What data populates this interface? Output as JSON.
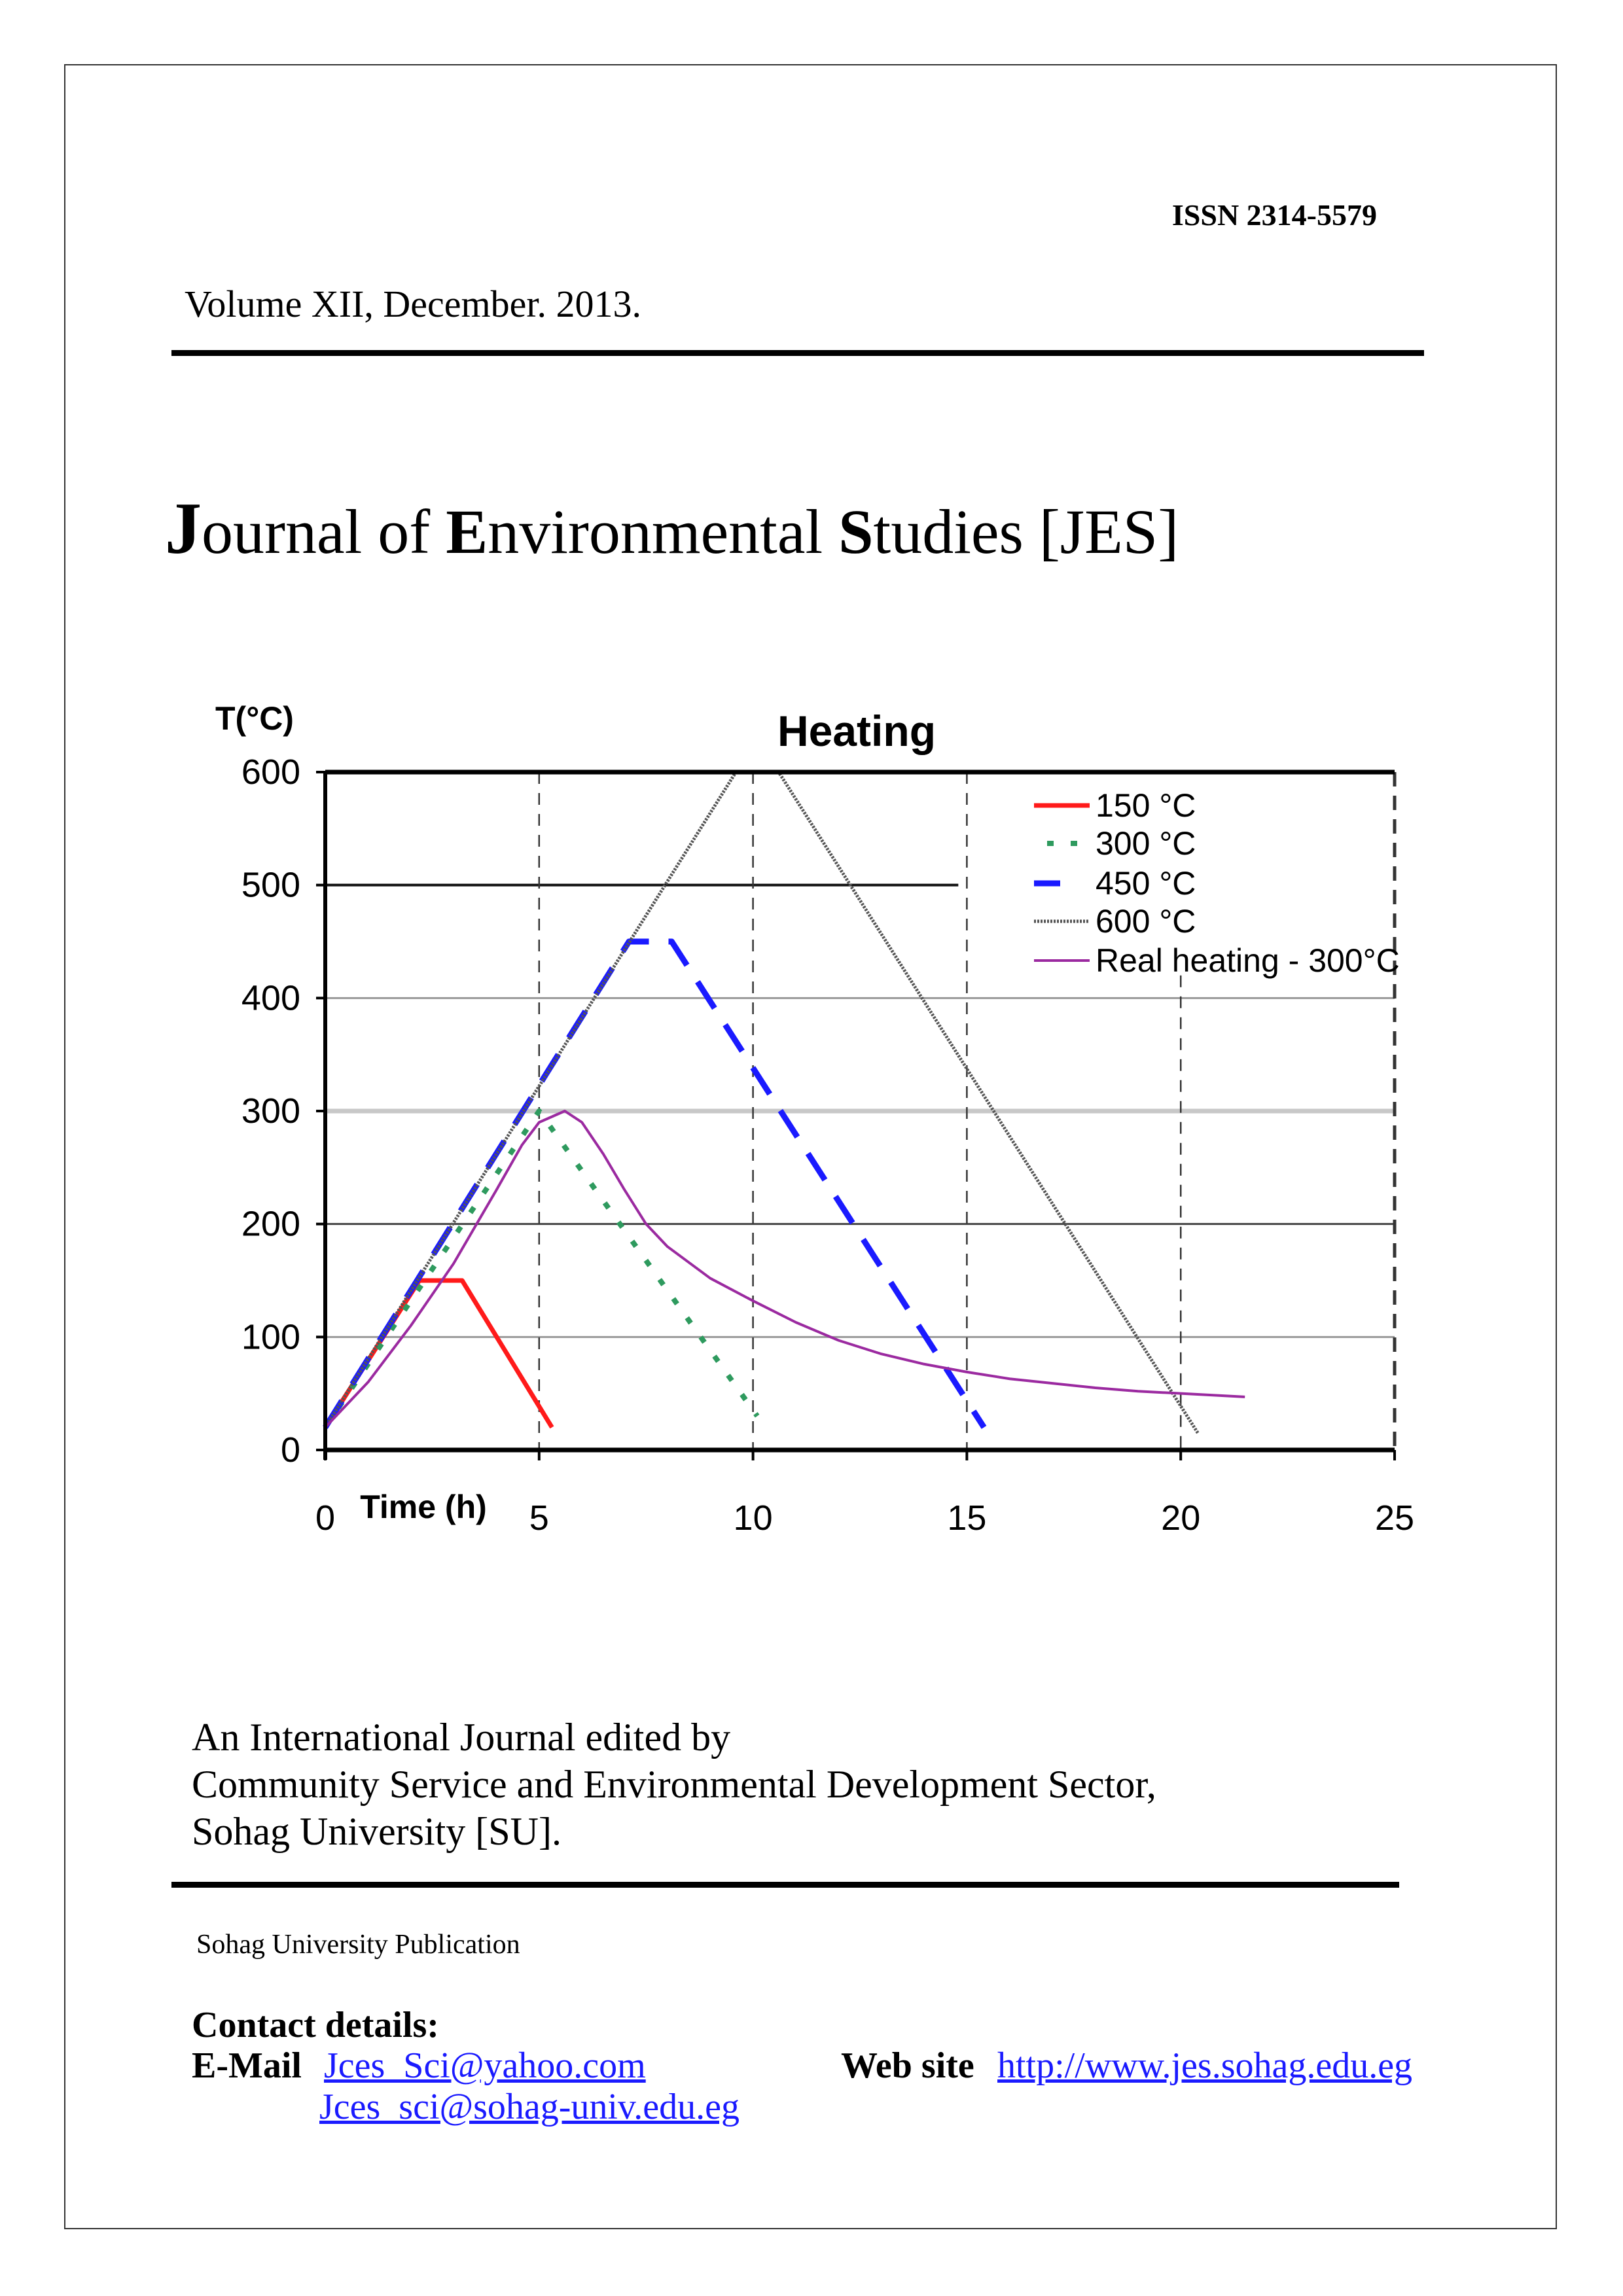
{
  "header": {
    "issn": "ISSN 2314-5579",
    "volume": "Volume XII, December. 2013."
  },
  "title": {
    "parts": [
      "J",
      "ournal of ",
      "E",
      "nvironmental ",
      "S",
      "tudies [JES]"
    ]
  },
  "chart_data": {
    "type": "line",
    "title": "Heating",
    "xlabel": "Time (h)",
    "ylabel": "T(°C)",
    "xlim": [
      0,
      25
    ],
    "ylim": [
      0,
      600
    ],
    "xticks": [
      0,
      5,
      10,
      15,
      20,
      25
    ],
    "yticks": [
      0,
      100,
      200,
      300,
      400,
      500,
      600
    ],
    "grid": true,
    "legend": "top-right",
    "series": [
      {
        "name": "150 °C",
        "color": "#ff1a1a",
        "style": "solid",
        "points": [
          [
            0,
            20
          ],
          [
            2.2,
            150
          ],
          [
            3.2,
            150
          ],
          [
            5.3,
            20
          ]
        ]
      },
      {
        "name": "300 °C",
        "color": "#2e9a5e",
        "style": "dotted",
        "points": [
          [
            0,
            20
          ],
          [
            5.0,
            300
          ],
          [
            10.1,
            30
          ]
        ]
      },
      {
        "name": "450 °C",
        "color": "#1a1aff",
        "style": "dashed",
        "points": [
          [
            0,
            20
          ],
          [
            7.1,
            450
          ],
          [
            8.1,
            450
          ],
          [
            15.4,
            20
          ]
        ]
      },
      {
        "name": "600 °C",
        "color": "#555555",
        "style": "hatched",
        "points": [
          [
            0,
            20
          ],
          [
            9.6,
            600
          ],
          [
            10.6,
            600
          ],
          [
            20.4,
            15
          ]
        ]
      },
      {
        "name": "Real heating - 300°C",
        "color": "#9b2aa0",
        "style": "solid",
        "points": [
          [
            0,
            20
          ],
          [
            1,
            60
          ],
          [
            2,
            110
          ],
          [
            3,
            165
          ],
          [
            4,
            230
          ],
          [
            4.6,
            270
          ],
          [
            5,
            290
          ],
          [
            5.6,
            300
          ],
          [
            6,
            290
          ],
          [
            6.5,
            262
          ],
          [
            7,
            230
          ],
          [
            7.5,
            200
          ],
          [
            8,
            180
          ],
          [
            9,
            152
          ],
          [
            10,
            132
          ],
          [
            11,
            113
          ],
          [
            12,
            97
          ],
          [
            13,
            85
          ],
          [
            14,
            76
          ],
          [
            15,
            69
          ],
          [
            16,
            63
          ],
          [
            17,
            59
          ],
          [
            18,
            55
          ],
          [
            19,
            52
          ],
          [
            20,
            50
          ],
          [
            21.5,
            47
          ]
        ]
      }
    ]
  },
  "footer": {
    "edited_lines": [
      "An International Journal edited by",
      "Community Service and Environmental Development Sector,",
      "Sohag University [SU]."
    ],
    "publication": "Sohag University Publication",
    "contact_heading": "Contact details:",
    "email_label": "E-Mail",
    "emails": [
      "Jces_Sci@yahoo.com",
      "Jces_sci@sohag-univ.edu.eg"
    ],
    "website_label": "Web site",
    "website": "http://www.jes.sohag.edu.eg"
  }
}
